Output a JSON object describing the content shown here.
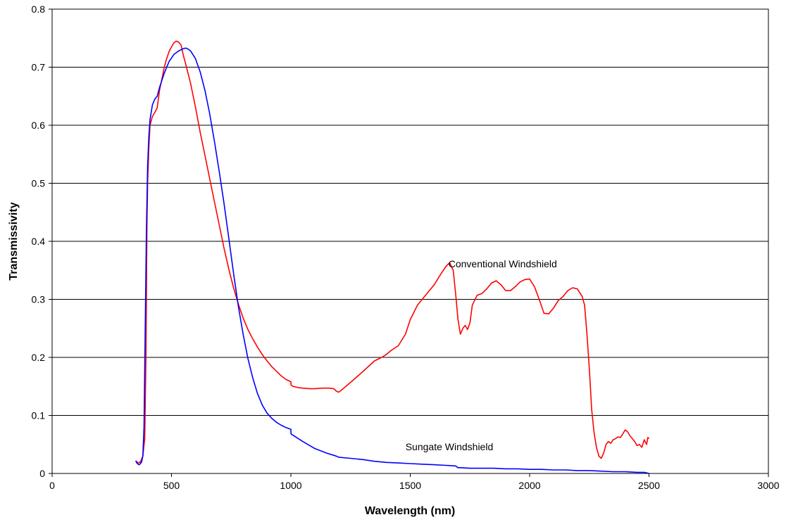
{
  "chart_data": {
    "type": "line",
    "title": "",
    "xlabel": "Wavelength (nm)",
    "ylabel": "Transmissivity",
    "xlim": [
      0,
      3000
    ],
    "ylim": [
      0,
      0.8
    ],
    "x_ticks": [
      0,
      500,
      1000,
      1500,
      2000,
      2500,
      3000
    ],
    "y_ticks": [
      0,
      0.1,
      0.2,
      0.3,
      0.4,
      0.5,
      0.6,
      0.7,
      0.8
    ],
    "x_tick_labels": [
      "0",
      "500",
      "1000",
      "1500",
      "2000",
      "2500",
      "3000"
    ],
    "y_tick_labels": [
      "0",
      "0.1",
      "0.2",
      "0.3",
      "0.4",
      "0.5",
      "0.6",
      "0.7",
      "0.8"
    ],
    "grid": "horizontal major gridlines",
    "legend": "none",
    "annotations": [
      {
        "text": "Conventional Windshield",
        "x": 1660,
        "y": 0.355
      },
      {
        "text": "Sungate Windshield",
        "x": 1480,
        "y": 0.04
      }
    ],
    "series": [
      {
        "color": "#ff0000",
        "x": [
          350,
          360,
          370,
          380,
          388,
          393,
          397,
          400,
          405,
          410,
          420,
          430,
          440,
          450,
          460,
          470,
          480,
          490,
          500,
          510,
          520,
          530,
          540,
          550,
          560,
          580,
          600,
          620,
          640,
          660,
          680,
          700,
          720,
          740,
          760,
          780,
          800,
          820,
          840,
          860,
          880,
          900,
          920,
          940,
          960,
          980,
          1000,
          1001,
          1010,
          1030,
          1050,
          1080,
          1100,
          1130,
          1160,
          1180,
          1190,
          1200,
          1210,
          1250,
          1300,
          1350,
          1380,
          1400,
          1420,
          1450,
          1480,
          1500,
          1530,
          1560,
          1600,
          1630,
          1650,
          1665,
          1680,
          1690,
          1700,
          1710,
          1720,
          1730,
          1740,
          1750,
          1760,
          1780,
          1800,
          1820,
          1840,
          1860,
          1880,
          1900,
          1920,
          1940,
          1960,
          1980,
          2000,
          2020,
          2040,
          2060,
          2080,
          2100,
          2120,
          2140,
          2160,
          2180,
          2200,
          2220,
          2230,
          2240,
          2250,
          2260,
          2270,
          2280,
          2290,
          2300,
          2310,
          2320,
          2330,
          2340,
          2350,
          2360,
          2370,
          2380,
          2390,
          2400,
          2410,
          2420,
          2430,
          2440,
          2450,
          2460,
          2470,
          2480,
          2490,
          2495,
          2500
        ],
        "y": [
          0.022,
          0.018,
          0.02,
          0.03,
          0.06,
          0.2,
          0.42,
          0.5,
          0.56,
          0.6,
          0.615,
          0.622,
          0.63,
          0.66,
          0.68,
          0.7,
          0.715,
          0.727,
          0.735,
          0.742,
          0.745,
          0.743,
          0.738,
          0.72,
          0.705,
          0.672,
          0.632,
          0.588,
          0.548,
          0.508,
          0.468,
          0.428,
          0.388,
          0.352,
          0.32,
          0.292,
          0.268,
          0.248,
          0.232,
          0.218,
          0.205,
          0.194,
          0.184,
          0.176,
          0.168,
          0.162,
          0.158,
          0.152,
          0.15,
          0.148,
          0.147,
          0.146,
          0.146,
          0.147,
          0.147,
          0.146,
          0.142,
          0.14,
          0.143,
          0.157,
          0.175,
          0.194,
          0.2,
          0.205,
          0.212,
          0.22,
          0.24,
          0.265,
          0.29,
          0.305,
          0.325,
          0.345,
          0.357,
          0.363,
          0.35,
          0.31,
          0.265,
          0.24,
          0.25,
          0.255,
          0.248,
          0.26,
          0.29,
          0.307,
          0.31,
          0.318,
          0.328,
          0.332,
          0.325,
          0.315,
          0.315,
          0.322,
          0.33,
          0.334,
          0.335,
          0.322,
          0.3,
          0.276,
          0.275,
          0.285,
          0.298,
          0.305,
          0.315,
          0.32,
          0.318,
          0.305,
          0.29,
          0.24,
          0.18,
          0.11,
          0.07,
          0.045,
          0.03,
          0.026,
          0.035,
          0.05,
          0.055,
          0.052,
          0.058,
          0.06,
          0.063,
          0.062,
          0.068,
          0.075,
          0.072,
          0.065,
          0.06,
          0.055,
          0.048,
          0.05,
          0.045,
          0.058,
          0.05,
          0.062,
          0.06
        ]
      },
      {
        "color": "#0000ff",
        "x": [
          350,
          355,
          360,
          365,
          370,
          375,
          380,
          385,
          390,
          395,
          400,
          405,
          410,
          420,
          430,
          440,
          450,
          470,
          490,
          510,
          530,
          550,
          560,
          570,
          580,
          600,
          620,
          640,
          660,
          680,
          700,
          720,
          740,
          760,
          780,
          800,
          820,
          840,
          860,
          880,
          900,
          920,
          940,
          960,
          980,
          1000,
          1001,
          1050,
          1100,
          1150,
          1190,
          1200,
          1250,
          1300,
          1350,
          1400,
          1450,
          1500,
          1550,
          1600,
          1650,
          1690,
          1700,
          1710,
          1750,
          1800,
          1850,
          1900,
          1950,
          2000,
          2050,
          2100,
          2150,
          2200,
          2250,
          2300,
          2350,
          2400,
          2450,
          2480,
          2490,
          2500
        ],
        "y": [
          0.022,
          0.018,
          0.016,
          0.015,
          0.017,
          0.02,
          0.03,
          0.08,
          0.25,
          0.42,
          0.53,
          0.58,
          0.61,
          0.635,
          0.645,
          0.65,
          0.665,
          0.69,
          0.71,
          0.722,
          0.728,
          0.732,
          0.733,
          0.731,
          0.728,
          0.715,
          0.692,
          0.66,
          0.62,
          0.572,
          0.52,
          0.465,
          0.405,
          0.345,
          0.288,
          0.24,
          0.198,
          0.165,
          0.138,
          0.118,
          0.104,
          0.095,
          0.088,
          0.083,
          0.079,
          0.076,
          0.068,
          0.055,
          0.043,
          0.035,
          0.03,
          0.028,
          0.026,
          0.024,
          0.021,
          0.019,
          0.018,
          0.017,
          0.016,
          0.015,
          0.014,
          0.013,
          0.01,
          0.01,
          0.009,
          0.009,
          0.009,
          0.008,
          0.008,
          0.007,
          0.007,
          0.006,
          0.006,
          0.005,
          0.005,
          0.004,
          0.003,
          0.003,
          0.002,
          0.002,
          0.001,
          0.0
        ]
      }
    ]
  }
}
